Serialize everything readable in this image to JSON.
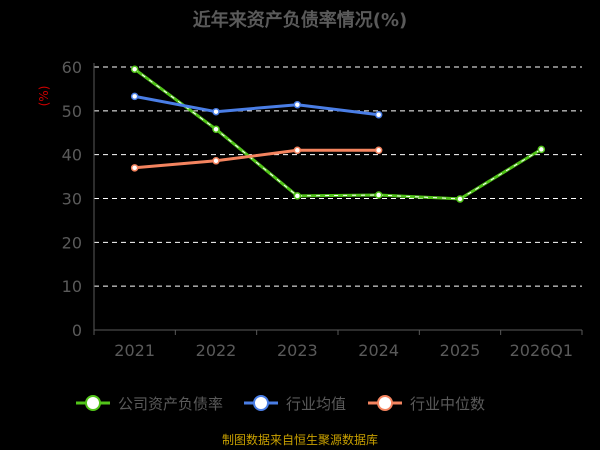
{
  "chart_data": {
    "type": "line",
    "title": "近年来资产负债率情况(%)",
    "unit_label": "(%)",
    "categories": [
      "2021",
      "2022",
      "2023",
      "2024",
      "2025",
      "2026Q1"
    ],
    "ylim": [
      0,
      60
    ],
    "yticks": [
      0,
      10,
      20,
      30,
      40,
      50,
      60
    ],
    "grid": true,
    "legend_position": "bottom",
    "series": [
      {
        "name": "公司资产负债率",
        "color": "#52c41a",
        "dashed_style": true,
        "values": [
          59.5,
          45.8,
          30.6,
          30.8,
          29.9,
          41.2
        ]
      },
      {
        "name": "行业均值",
        "color": "#4a7ee6",
        "values": [
          53.3,
          49.8,
          51.4,
          49.1,
          null,
          null
        ]
      },
      {
        "name": "行业中位数",
        "color": "#f4845f",
        "values": [
          37.0,
          38.6,
          41.0,
          41.0,
          null,
          null
        ]
      }
    ],
    "source": "制图数据来自恒生聚源数据库"
  }
}
